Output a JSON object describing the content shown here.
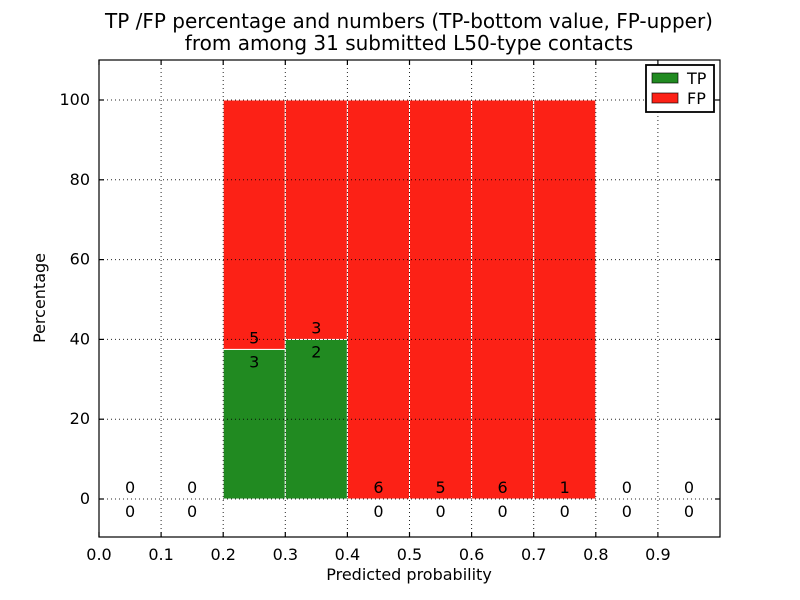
{
  "chart_data": {
    "type": "bar",
    "stacked": true,
    "title": "TP /FP percentage and numbers (TP-bottom value, FP-upper) from among 31 submitted L50-type contacts",
    "title_line1": "TP /FP percentage and numbers (TP-bottom value, FP-upper)",
    "title_line2": "from among 31 submitted L50-type contacts",
    "xlabel": "Predicted probability",
    "ylabel": "Percentage",
    "total_contacts": 31,
    "xlim": [
      0.0,
      1.0
    ],
    "ylim": [
      -10,
      110
    ],
    "grid": true,
    "xtick_labels": [
      "0.0",
      "0.1",
      "0.2",
      "0.3",
      "0.4",
      "0.5",
      "0.6",
      "0.7",
      "0.8",
      "0.9"
    ],
    "xtick_values": [
      0.0,
      0.1,
      0.2,
      0.3,
      0.4,
      0.5,
      0.6,
      0.7,
      0.8,
      0.9
    ],
    "ytick_labels": [
      "0",
      "20",
      "40",
      "60",
      "80",
      "100"
    ],
    "ytick_values": [
      0,
      20,
      40,
      60,
      80,
      100
    ],
    "bin_width": 0.1,
    "series": [
      {
        "name": "TP",
        "color": "#218a21",
        "counts": [
          0,
          0,
          3,
          2,
          0,
          0,
          0,
          0,
          0,
          0
        ],
        "pct": [
          0,
          0,
          37.5,
          40,
          0,
          0,
          0,
          0,
          0,
          0
        ]
      },
      {
        "name": "FP",
        "color": "#fc2116",
        "counts": [
          0,
          0,
          5,
          3,
          6,
          5,
          6,
          1,
          0,
          0
        ],
        "pct": [
          0,
          0,
          62.5,
          60,
          100,
          100,
          100,
          100,
          0,
          0
        ]
      }
    ],
    "bins": [
      {
        "x0": 0.0,
        "x1": 0.1,
        "tp": 0,
        "fp": 0,
        "tp_pct": 0,
        "fp_pct": 0
      },
      {
        "x0": 0.1,
        "x1": 0.2,
        "tp": 0,
        "fp": 0,
        "tp_pct": 0,
        "fp_pct": 0
      },
      {
        "x0": 0.2,
        "x1": 0.3,
        "tp": 3,
        "fp": 5,
        "tp_pct": 37.5,
        "fp_pct": 62.5
      },
      {
        "x0": 0.3,
        "x1": 0.4,
        "tp": 2,
        "fp": 3,
        "tp_pct": 40,
        "fp_pct": 60
      },
      {
        "x0": 0.4,
        "x1": 0.5,
        "tp": 0,
        "fp": 6,
        "tp_pct": 0,
        "fp_pct": 100
      },
      {
        "x0": 0.5,
        "x1": 0.6,
        "tp": 0,
        "fp": 5,
        "tp_pct": 0,
        "fp_pct": 100
      },
      {
        "x0": 0.6,
        "x1": 0.7,
        "tp": 0,
        "fp": 6,
        "tp_pct": 0,
        "fp_pct": 100
      },
      {
        "x0": 0.7,
        "x1": 0.8,
        "tp": 0,
        "fp": 1,
        "tp_pct": 0,
        "fp_pct": 100
      },
      {
        "x0": 0.8,
        "x1": 0.9,
        "tp": 0,
        "fp": 0,
        "tp_pct": 0,
        "fp_pct": 0
      },
      {
        "x0": 0.9,
        "x1": 1.0,
        "tp": 0,
        "fp": 0,
        "tp_pct": 0,
        "fp_pct": 0
      }
    ],
    "legend": {
      "position": "upper right",
      "entries": [
        {
          "label": "TP",
          "color": "#218a21"
        },
        {
          "label": "FP",
          "color": "#fc2116"
        }
      ]
    }
  }
}
